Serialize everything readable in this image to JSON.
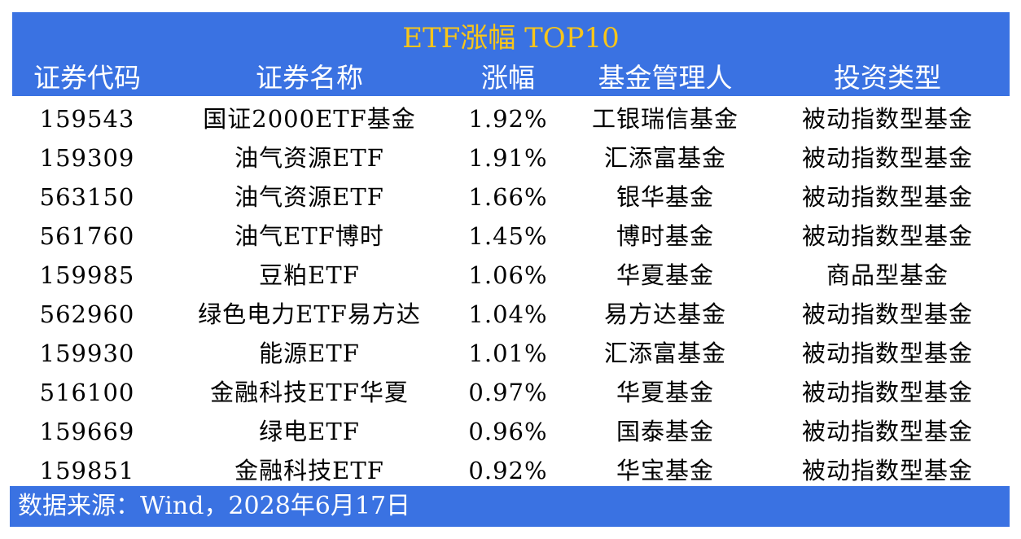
{
  "title": "ETF涨幅 TOP10",
  "headers": [
    "证券代码",
    "证券名称",
    "涨幅",
    "基金管理人",
    "投资类型"
  ],
  "rows": [
    [
      "159543",
      "国证2000ETF基金",
      "1.92%",
      "工银瑞信基金",
      "被动指数型基金"
    ],
    [
      "159309",
      "油气资源ETF",
      "1.91%",
      "汇添富基金",
      "被动指数型基金"
    ],
    [
      "563150",
      "油气资源ETF",
      "1.66%",
      "银华基金",
      "被动指数型基金"
    ],
    [
      "561760",
      "油气ETF博时",
      "1.45%",
      "博时基金",
      "被动指数型基金"
    ],
    [
      "159985",
      "豆粕ETF",
      "1.06%",
      "华夏基金",
      "商品型基金"
    ],
    [
      "562960",
      "绿色电力ETF易方达",
      "1.04%",
      "易方达基金",
      "被动指数型基金"
    ],
    [
      "159930",
      "能源ETF",
      "1.01%",
      "汇添富基金",
      "被动指数型基金"
    ],
    [
      "516100",
      "金融科技ETF华夏",
      "0.97%",
      "华夏基金",
      "被动指数型基金"
    ],
    [
      "159669",
      "绿电ETF",
      "0.96%",
      "国泰基金",
      "被动指数型基金"
    ],
    [
      "159851",
      "金融科技ETF",
      "0.92%",
      "华宝基金",
      "被动指数型基金"
    ]
  ],
  "footer": "数据来源：Wind，2028年6月17日",
  "colors": {
    "header_bg": "#3a72e2",
    "title": "#f7c51a",
    "header_text": "#ffffff"
  }
}
